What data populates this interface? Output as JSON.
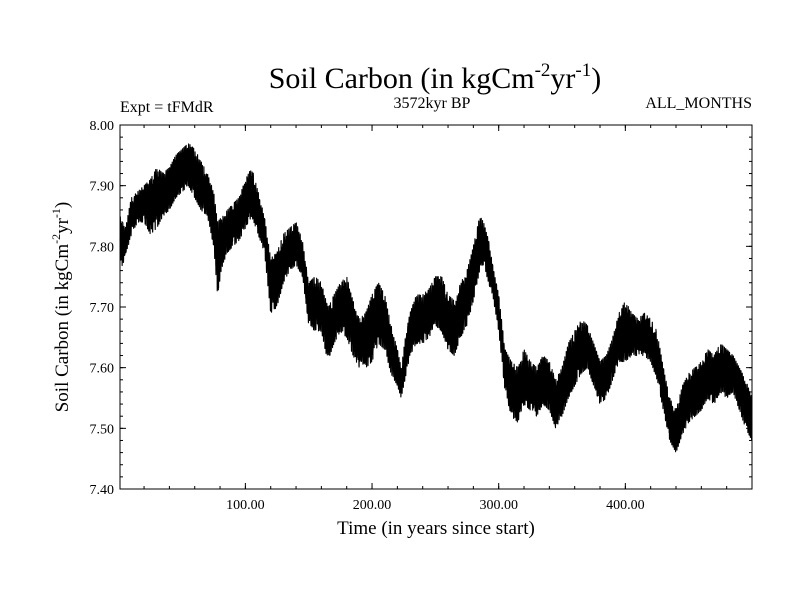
{
  "chart_data": {
    "type": "line",
    "title": {
      "main": "Soil Carbon (in kgCm",
      "exp1": "-2",
      "mid": "yr",
      "exp2": "-1",
      "end": ")"
    },
    "subtitle_left": "Expt = tFMdR",
    "subtitle_center": "3572kyr BP",
    "subtitle_right": "ALL_MONTHS",
    "xlabel": "Time (in years since start)",
    "ylabel": {
      "main": "Soil Carbon (in kgCm",
      "exp1": "-2",
      "mid": "yr",
      "exp2": "-1",
      "end": ")"
    },
    "xlim": [
      1,
      500
    ],
    "ylim": [
      7.4,
      8.0
    ],
    "x_ticks": [
      100,
      200,
      300,
      400
    ],
    "x_tick_labels": [
      "100.00",
      "200.00",
      "300.00",
      "400.00"
    ],
    "y_ticks": [
      7.4,
      7.5,
      7.6,
      7.7,
      7.8,
      7.9,
      8.0
    ],
    "y_tick_labels": [
      "7.40",
      "7.50",
      "7.60",
      "7.70",
      "7.80",
      "7.90",
      "8.00"
    ],
    "line_color": "#000000",
    "series": [
      {
        "name": "Soil Carbon",
        "resolution": "annual mean envelope of monthly data",
        "x": [
          1,
          5,
          10,
          15,
          20,
          25,
          30,
          35,
          40,
          45,
          50,
          55,
          60,
          65,
          70,
          75,
          78,
          82,
          86,
          90,
          95,
          100,
          105,
          110,
          115,
          120,
          125,
          130,
          135,
          140,
          145,
          150,
          155,
          160,
          165,
          170,
          175,
          180,
          185,
          190,
          195,
          200,
          205,
          210,
          215,
          220,
          223,
          227,
          230,
          235,
          240,
          245,
          250,
          255,
          260,
          265,
          270,
          275,
          280,
          285,
          288,
          292,
          296,
          300,
          305,
          310,
          315,
          320,
          325,
          330,
          335,
          340,
          345,
          350,
          355,
          360,
          365,
          370,
          375,
          380,
          385,
          390,
          395,
          400,
          405,
          410,
          415,
          420,
          425,
          430,
          435,
          440,
          445,
          450,
          455,
          460,
          465,
          470,
          475,
          480,
          485,
          490,
          495,
          500
        ],
        "min": [
          7.76,
          7.78,
          7.82,
          7.84,
          7.84,
          7.82,
          7.83,
          7.85,
          7.86,
          7.88,
          7.89,
          7.9,
          7.88,
          7.86,
          7.85,
          7.8,
          7.72,
          7.77,
          7.79,
          7.8,
          7.81,
          7.83,
          7.85,
          7.82,
          7.79,
          7.69,
          7.7,
          7.74,
          7.76,
          7.77,
          7.75,
          7.67,
          7.66,
          7.66,
          7.61,
          7.64,
          7.66,
          7.65,
          7.62,
          7.6,
          7.6,
          7.61,
          7.64,
          7.63,
          7.59,
          7.57,
          7.55,
          7.59,
          7.62,
          7.64,
          7.64,
          7.65,
          7.67,
          7.66,
          7.63,
          7.62,
          7.65,
          7.67,
          7.71,
          7.76,
          7.77,
          7.74,
          7.71,
          7.66,
          7.56,
          7.52,
          7.51,
          7.54,
          7.53,
          7.52,
          7.54,
          7.53,
          7.5,
          7.52,
          7.55,
          7.57,
          7.59,
          7.6,
          7.57,
          7.54,
          7.55,
          7.58,
          7.61,
          7.61,
          7.62,
          7.62,
          7.62,
          7.61,
          7.58,
          7.53,
          7.48,
          7.46,
          7.49,
          7.51,
          7.52,
          7.53,
          7.55,
          7.54,
          7.56,
          7.55,
          7.56,
          7.53,
          7.5,
          7.48
        ],
        "max": [
          7.85,
          7.83,
          7.88,
          7.89,
          7.9,
          7.91,
          7.93,
          7.92,
          7.93,
          7.95,
          7.96,
          7.97,
          7.96,
          7.94,
          7.92,
          7.89,
          7.84,
          7.85,
          7.86,
          7.87,
          7.88,
          7.91,
          7.93,
          7.89,
          7.85,
          7.78,
          7.79,
          7.82,
          7.83,
          7.84,
          7.81,
          7.74,
          7.75,
          7.74,
          7.7,
          7.72,
          7.74,
          7.75,
          7.71,
          7.68,
          7.69,
          7.72,
          7.74,
          7.72,
          7.67,
          7.63,
          7.6,
          7.66,
          7.69,
          7.72,
          7.72,
          7.73,
          7.75,
          7.75,
          7.72,
          7.71,
          7.74,
          7.76,
          7.8,
          7.85,
          7.84,
          7.81,
          7.76,
          7.72,
          7.63,
          7.61,
          7.6,
          7.63,
          7.61,
          7.6,
          7.62,
          7.61,
          7.58,
          7.6,
          7.64,
          7.66,
          7.68,
          7.67,
          7.64,
          7.61,
          7.62,
          7.65,
          7.69,
          7.71,
          7.69,
          7.68,
          7.69,
          7.68,
          7.66,
          7.6,
          7.55,
          7.53,
          7.57,
          7.59,
          7.6,
          7.61,
          7.63,
          7.62,
          7.64,
          7.63,
          7.62,
          7.6,
          7.58,
          7.55
        ]
      }
    ]
  }
}
